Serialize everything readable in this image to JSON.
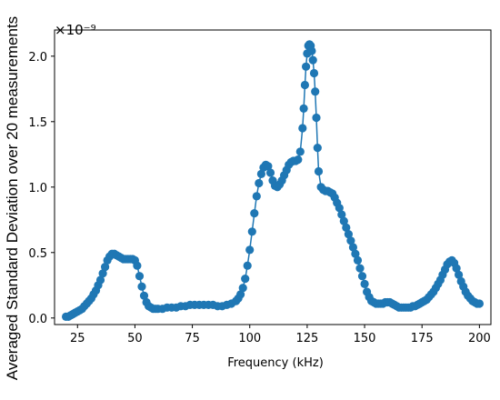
{
  "chart_data": {
    "type": "scatter",
    "xlabel": "Frequency (kHz)",
    "ylabel": "Averaged Standard Deviation over 20 measurements",
    "y_offset_text": "×10⁻⁹",
    "xlim": [
      15,
      205
    ],
    "ylim": [
      -0.05,
      2.2
    ],
    "xticks": [
      25,
      50,
      75,
      100,
      125,
      150,
      175,
      200
    ],
    "xtick_labels": [
      "25",
      "50",
      "75",
      "100",
      "125",
      "150",
      "175",
      "200"
    ],
    "yticks": [
      0.0,
      0.5,
      1.0,
      1.5,
      2.0
    ],
    "ytick_labels": [
      "0.0",
      "0.5",
      "1.0",
      "1.5",
      "2.0"
    ],
    "grid": false,
    "marker": "circle",
    "color": "#1f77b4",
    "series": [
      {
        "x": [
          20.0,
          21.0,
          22.0,
          23.0,
          24.0,
          25.0,
          26.0,
          27.0,
          28.0,
          29.0,
          30.0,
          31.0,
          32.0,
          33.0,
          34.0,
          35.0,
          36.0,
          37.0,
          38.0,
          39.0,
          40.0,
          41.0,
          42.0,
          43.0,
          44.0,
          45.0,
          46.0,
          47.0,
          48.0,
          49.0,
          50.0,
          51.0,
          52.0,
          53.0,
          54.0,
          55.0,
          56.0,
          57.0,
          58.0,
          59.0,
          60.0,
          62.0,
          64.0,
          66.0,
          68.0,
          70.0,
          72.0,
          74.0,
          76.0,
          78.0,
          80.0,
          82.0,
          84.0,
          86.0,
          88.0,
          90.0,
          92.0,
          94.0,
          95.0,
          96.0,
          97.0,
          98.0,
          99.0,
          100.0,
          101.0,
          102.0,
          103.0,
          104.0,
          105.0,
          106.0,
          107.0,
          108.0,
          109.0,
          110.0,
          111.0,
          112.0,
          113.0,
          114.0,
          115.0,
          116.0,
          117.0,
          118.0,
          119.0,
          120.0,
          121.0,
          122.0,
          123.0,
          123.5,
          124.0,
          124.5,
          125.0,
          125.5,
          126.0,
          126.5,
          127.0,
          127.5,
          128.0,
          128.5,
          129.0,
          129.5,
          130.0,
          131.0,
          132.0,
          133.0,
          134.0,
          135.0,
          136.0,
          137.0,
          138.0,
          139.0,
          140.0,
          141.0,
          142.0,
          143.0,
          144.0,
          145.0,
          146.0,
          147.0,
          148.0,
          149.0,
          150.0,
          151.0,
          152.0,
          153.0,
          154.0,
          155.0,
          156.0,
          157.0,
          158.0,
          159.0,
          160.0,
          161.0,
          162.0,
          163.0,
          164.0,
          165.0,
          166.0,
          167.0,
          168.0,
          169.0,
          170.0,
          171.0,
          172.0,
          173.0,
          174.0,
          175.0,
          176.0,
          177.0,
          178.0,
          179.0,
          180.0,
          181.0,
          182.0,
          183.0,
          184.0,
          185.0,
          186.0,
          187.0,
          188.0,
          189.0,
          190.0,
          191.0,
          192.0,
          193.0,
          194.0,
          195.0,
          196.0,
          197.0,
          198.0,
          199.0,
          200.0
        ],
        "y": [
          0.01,
          0.01,
          0.02,
          0.03,
          0.04,
          0.05,
          0.06,
          0.07,
          0.09,
          0.11,
          0.13,
          0.15,
          0.18,
          0.21,
          0.25,
          0.29,
          0.34,
          0.39,
          0.44,
          0.47,
          0.49,
          0.49,
          0.48,
          0.47,
          0.46,
          0.45,
          0.45,
          0.45,
          0.45,
          0.45,
          0.44,
          0.4,
          0.32,
          0.24,
          0.17,
          0.12,
          0.09,
          0.08,
          0.07,
          0.07,
          0.07,
          0.07,
          0.08,
          0.08,
          0.08,
          0.09,
          0.09,
          0.1,
          0.1,
          0.1,
          0.1,
          0.1,
          0.1,
          0.09,
          0.09,
          0.1,
          0.11,
          0.13,
          0.15,
          0.18,
          0.23,
          0.3,
          0.4,
          0.52,
          0.66,
          0.8,
          0.93,
          1.03,
          1.1,
          1.15,
          1.17,
          1.16,
          1.11,
          1.05,
          1.01,
          1.0,
          1.02,
          1.05,
          1.09,
          1.13,
          1.17,
          1.19,
          1.2,
          1.2,
          1.21,
          1.27,
          1.45,
          1.6,
          1.78,
          1.92,
          2.02,
          2.08,
          2.09,
          2.08,
          2.04,
          1.97,
          1.87,
          1.73,
          1.53,
          1.3,
          1.12,
          1.0,
          0.98,
          0.97,
          0.97,
          0.96,
          0.95,
          0.92,
          0.88,
          0.84,
          0.79,
          0.74,
          0.69,
          0.64,
          0.59,
          0.54,
          0.49,
          0.44,
          0.38,
          0.32,
          0.26,
          0.2,
          0.16,
          0.13,
          0.12,
          0.11,
          0.11,
          0.11,
          0.11,
          0.12,
          0.12,
          0.12,
          0.11,
          0.1,
          0.09,
          0.08,
          0.08,
          0.08,
          0.08,
          0.08,
          0.08,
          0.09,
          0.09,
          0.1,
          0.11,
          0.12,
          0.13,
          0.14,
          0.16,
          0.18,
          0.2,
          0.23,
          0.26,
          0.29,
          0.33,
          0.37,
          0.41,
          0.43,
          0.44,
          0.42,
          0.38,
          0.33,
          0.28,
          0.24,
          0.2,
          0.17,
          0.15,
          0.13,
          0.12,
          0.11,
          0.11
        ]
      }
    ]
  }
}
